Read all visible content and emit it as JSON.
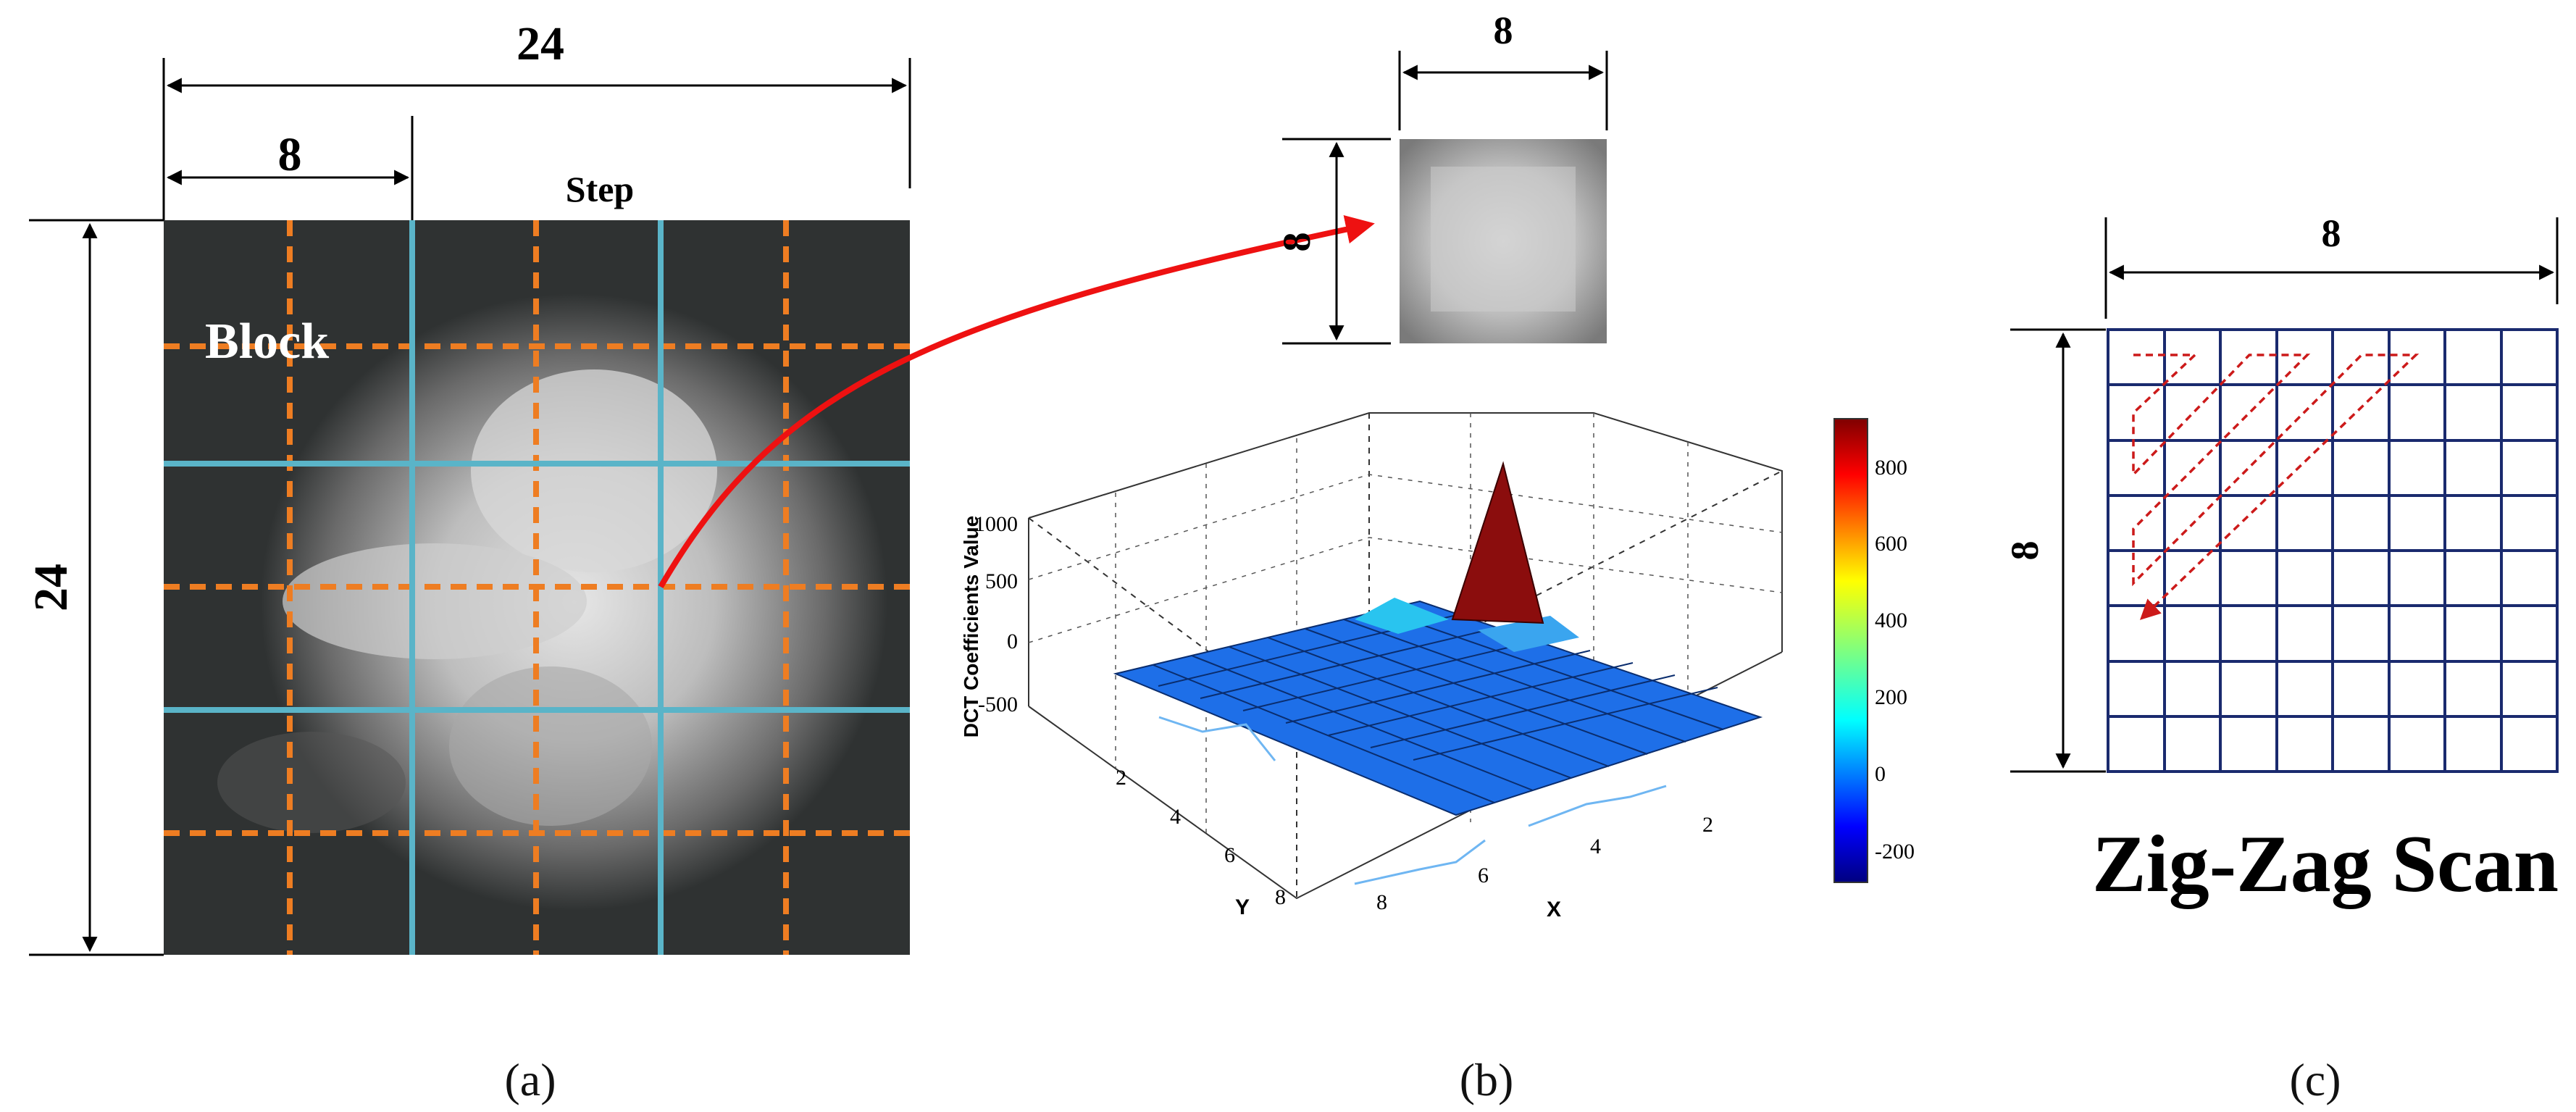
{
  "panel_a": {
    "width_label": "24",
    "block_width_label": "8",
    "height_label": "24",
    "step_label": "Step",
    "block_label": "Block",
    "caption": "(a)"
  },
  "panel_b": {
    "block_width_label": "8",
    "block_height_label": "8",
    "caption": "(b)",
    "chart_data": {
      "type": "surface3d",
      "title": "",
      "zlabel": "DCT Coefficients Value",
      "xlabel": "X",
      "ylabel": "Y",
      "x_ticks": [
        "2",
        "4",
        "6",
        "8"
      ],
      "y_ticks": [
        "2",
        "4",
        "6",
        "8"
      ],
      "z_ticks": [
        "1000",
        "500",
        "0",
        "-500"
      ],
      "zlim": [
        -500,
        1000
      ],
      "colorbar_ticks": [
        "800",
        "600",
        "400",
        "200",
        "0",
        "-200"
      ],
      "colorbar_range": [
        -280,
        930
      ],
      "colormap": "jet",
      "peak": {
        "x": 1,
        "y": 1,
        "value": 930
      },
      "surface_level": 0
    }
  },
  "panel_c": {
    "width_label": "8",
    "height_label": "8",
    "title": "Zig-Zag Scan",
    "caption": "(c)",
    "grid_rows": 8,
    "grid_cols": 8
  },
  "colors": {
    "orange_grid": "#ee7d22",
    "blue_grid": "#5ab4c8",
    "arrow_red": "#ee1111",
    "zigzag_red": "#cc1a1a",
    "grid_navy": "#1a2a6e",
    "surface_blue": "#1e6fe8",
    "peak_red": "#8b0d0d"
  }
}
